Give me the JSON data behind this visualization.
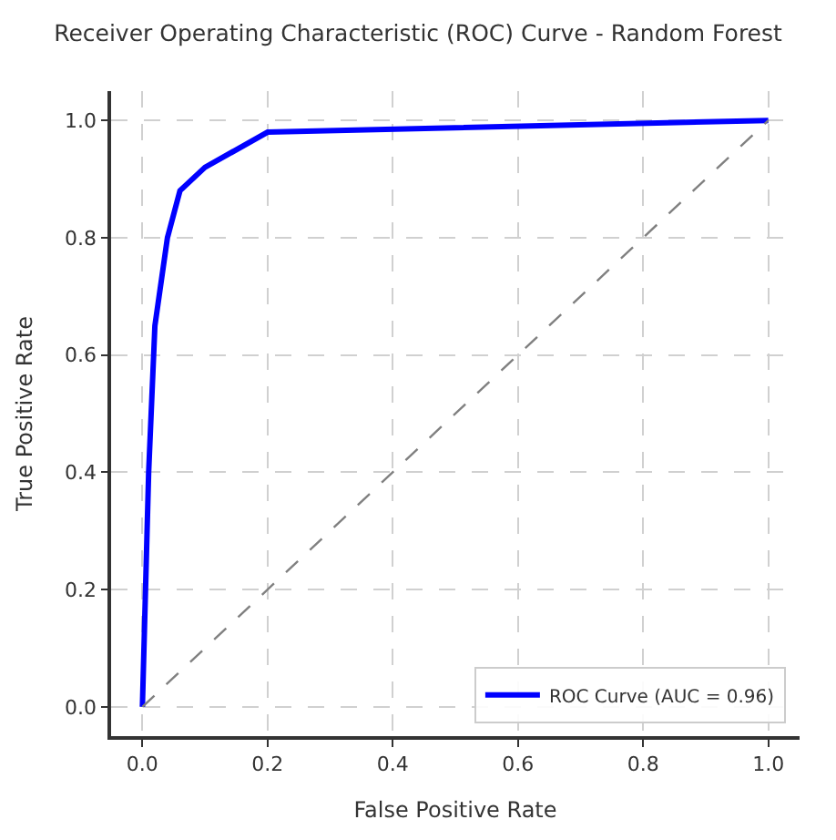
{
  "chart_data": {
    "type": "line",
    "title": "Receiver Operating Characteristic (ROC) Curve - Random Forest",
    "xlabel": "False Positive Rate",
    "ylabel": "True Positive Rate",
    "series": [
      {
        "name": "ROC Curve (AUC = 0.96)",
        "color": "#0000ff",
        "x": [
          0,
          0.01,
          0.02,
          0.04,
          0.06,
          0.1,
          0.2,
          1.0
        ],
        "values": [
          0,
          0.4,
          0.65,
          0.8,
          0.88,
          0.92,
          0.98,
          1.0
        ]
      },
      {
        "color": "#808080",
        "line_style": "dashed",
        "x": [
          0,
          1
        ],
        "values": [
          0,
          1
        ]
      }
    ],
    "xlim": [
      -0.05,
      1.05
    ],
    "ylim": [
      -0.05,
      1.05
    ],
    "xticks": [
      {
        "value": 0,
        "label": "0.0"
      },
      0.2,
      0.4,
      0.6,
      0.8,
      {
        "value": 1,
        "label": "1.0"
      }
    ],
    "yticks": [
      {
        "value": 0,
        "label": "0.0"
      },
      0.2,
      0.4,
      0.6,
      0.8,
      {
        "value": 1,
        "label": "1.0"
      }
    ],
    "grid": true,
    "legend": "bottom right",
    "line_style": "solid",
    "marker": "none"
  }
}
